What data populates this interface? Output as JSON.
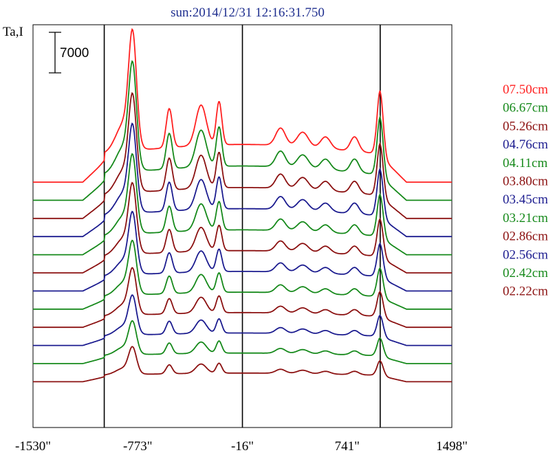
{
  "chart_data": {
    "type": "line",
    "title": "sun:2014/12/31 12:16:31.750",
    "ylabel": "Ta,I",
    "scale_bar_label": "7000",
    "scale_bar_value": 7000,
    "x_tick_labels": [
      "-1530\"",
      "-773\"",
      "-16\"",
      "741\"",
      "1498\""
    ],
    "x_ticks": [
      -1530,
      -773,
      -16,
      741,
      1498
    ],
    "xlim": [
      -1530,
      1498
    ],
    "vertical_markers": [
      -1015,
      -16,
      980
    ],
    "legend_position": "right",
    "colors": {
      "red": "#ff2020",
      "green": "#15891a",
      "darkred": "#8b1010",
      "blue": "#1b1b8f",
      "frame": "#000000"
    },
    "series": [
      {
        "name": "07.50cm",
        "color": "#ff2020",
        "amp": 1.0,
        "offset": 0
      },
      {
        "name": "06.67cm",
        "color": "#15891a",
        "amp": 0.91,
        "offset": 1
      },
      {
        "name": "05.26cm",
        "color": "#8b1010",
        "amp": 0.82,
        "offset": 2
      },
      {
        "name": "04.76cm",
        "color": "#1b1b8f",
        "amp": 0.74,
        "offset": 3
      },
      {
        "name": "04.11cm",
        "color": "#15891a",
        "amp": 0.66,
        "offset": 4
      },
      {
        "name": "03.80cm",
        "color": "#8b1010",
        "amp": 0.59,
        "offset": 5
      },
      {
        "name": "03.45cm",
        "color": "#1b1b8f",
        "amp": 0.52,
        "offset": 6
      },
      {
        "name": "03.21cm",
        "color": "#15891a",
        "amp": 0.45,
        "offset": 7
      },
      {
        "name": "02.86cm",
        "color": "#8b1010",
        "amp": 0.39,
        "offset": 8
      },
      {
        "name": "02.56cm",
        "color": "#1b1b8f",
        "amp": 0.33,
        "offset": 9
      },
      {
        "name": "02.42cm",
        "color": "#15891a",
        "amp": 0.28,
        "offset": 10
      },
      {
        "name": "02.22cm",
        "color": "#8b1010",
        "amp": 0.23,
        "offset": 11
      }
    ]
  }
}
